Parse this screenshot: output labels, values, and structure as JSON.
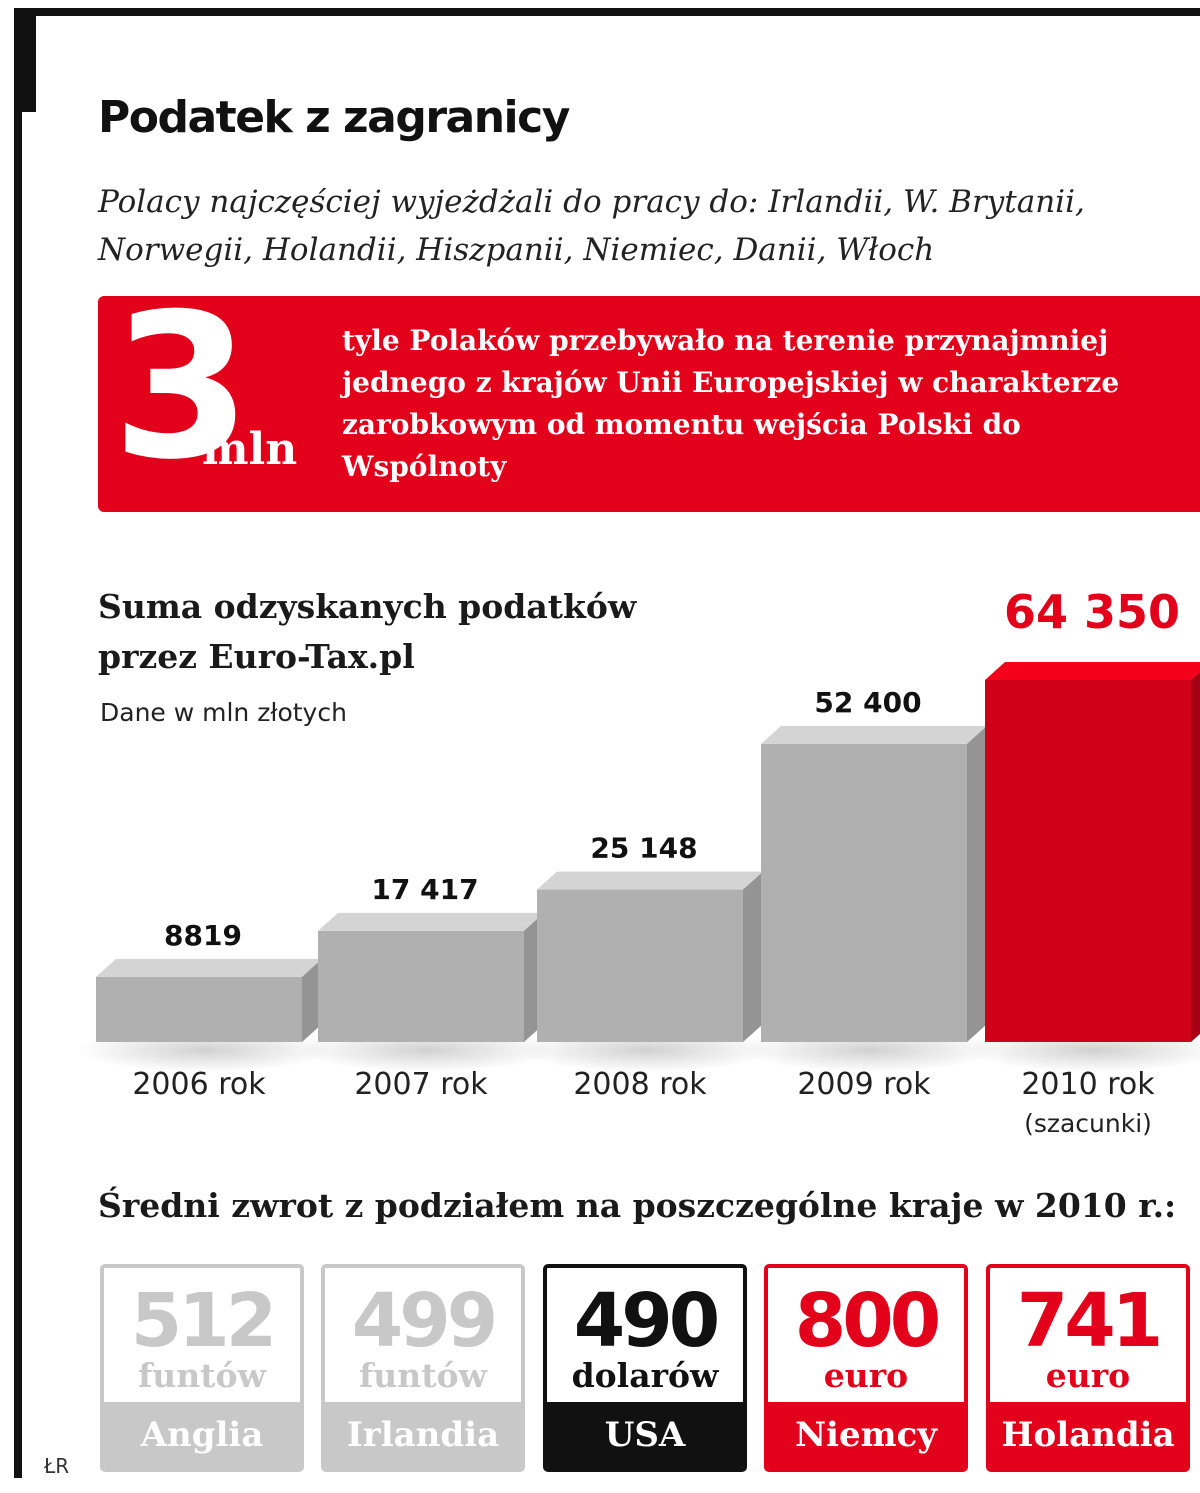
{
  "header": {
    "title": "Podatek z zagranicy",
    "subtitle": "Polacy najczęściej wyjeżdżali do pracy do: Irlandii,   W. Brytanii, Norwegii, Holandii, Hiszpanii, Niemiec, Danii, Włoch"
  },
  "highlight": {
    "number": "3",
    "unit": "mln",
    "text": "tyle Polaków przebywało na terenie przynajmniej jednego z krajów Unii Europejskiej w charakterze zarobkowym od momentu wejścia Polski do Wspólnoty",
    "color": "#e2001a"
  },
  "chart_data": {
    "type": "bar",
    "title": "Suma odzyskanych podatków przez Euro-Tax.pl",
    "subtitle": "Dane w mln złotych",
    "categories": [
      "2006 rok",
      "2007 rok",
      "2008 rok",
      "2009 rok",
      "2010 rok"
    ],
    "category_notes": [
      "",
      "",
      "",
      "",
      "(szacunki)"
    ],
    "values": [
      8819,
      17417,
      25148,
      52400,
      64350
    ],
    "value_labels": [
      "8819",
      "17 417",
      "25 148",
      "52 400",
      "64 350"
    ],
    "highlight_index": 4,
    "colors": {
      "bar": "#c8c8c8",
      "bar_highlight": "#e2001a"
    },
    "ylim": [
      0,
      64350
    ],
    "grid": false,
    "legend": "none"
  },
  "returns": {
    "title": "Średni zwrot z podziałem na poszczególne kraje w 2010 r.:",
    "cards": [
      {
        "value": "512",
        "unit": "funtów",
        "country": "Anglia",
        "theme": "gray"
      },
      {
        "value": "499",
        "unit": "funtów",
        "country": "Irlandia",
        "theme": "gray"
      },
      {
        "value": "490",
        "unit": "dolarów",
        "country": "USA",
        "theme": "black"
      },
      {
        "value": "800",
        "unit": "euro",
        "country": "Niemcy",
        "theme": "red"
      },
      {
        "value": "741",
        "unit": "euro",
        "country": "Holandia",
        "theme": "red"
      }
    ],
    "theme_colors": {
      "gray": "#c8c8c8",
      "black": "#111111",
      "red": "#e2001a"
    }
  },
  "credit": "ŁR"
}
